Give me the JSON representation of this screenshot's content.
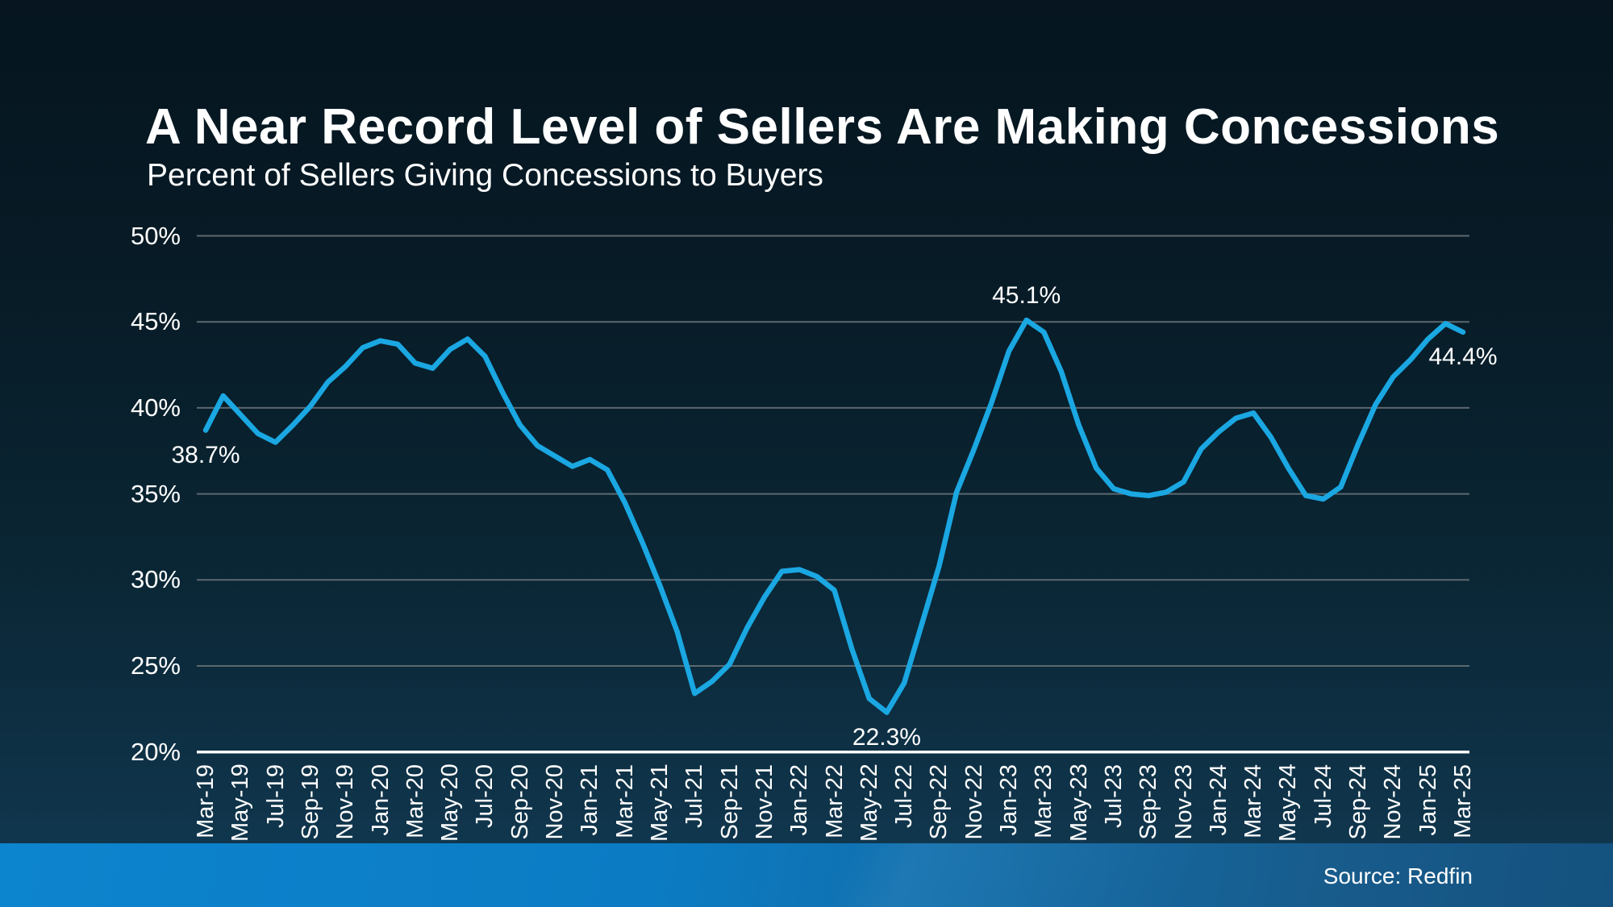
{
  "title": "A Near Record Level of Sellers Are Making Concessions",
  "subtitle": "Percent of Sellers Giving Concessions to Buyers",
  "source": "Source: Redfin",
  "colors": {
    "background_top": "#06151f",
    "background_bottom": "#123c55",
    "line": "#1aa7e2",
    "gridline": "#5c686f",
    "axis_line": "#ffffff",
    "text": "#ffffff",
    "footer_left": "#0d84ce",
    "footer_right": "#14517e"
  },
  "chart_data": {
    "type": "line",
    "unit": "%",
    "title": "A Near Record Level of Sellers Are Making Concessions",
    "subtitle": "Percent of Sellers Giving Concessions to Buyers",
    "ylim": [
      20,
      50
    ],
    "grid": "horizontal",
    "legend": "none",
    "yticks": [
      {
        "value": 50,
        "label": "50%"
      },
      {
        "value": 45,
        "label": "45%"
      },
      {
        "value": 40,
        "label": "40%"
      },
      {
        "value": 35,
        "label": "35%"
      },
      {
        "value": 30,
        "label": "30%"
      },
      {
        "value": 25,
        "label": "25%"
      },
      {
        "value": 20,
        "label": "20%"
      }
    ],
    "x_tick_labels": [
      "Mar-19",
      "May-19",
      "Jul-19",
      "Sep-19",
      "Nov-19",
      "Jan-20",
      "Mar-20",
      "May-20",
      "Jul-20",
      "Sep-20",
      "Nov-20",
      "Jan-21",
      "Mar-21",
      "May-21",
      "Jul-21",
      "Sep-21",
      "Nov-21",
      "Jan-22",
      "Mar-22",
      "May-22",
      "Jul-22",
      "Sep-22",
      "Nov-22",
      "Jan-23",
      "Mar-23",
      "May-23",
      "Jul-23",
      "Sep-23",
      "Nov-23",
      "Jan-24",
      "Mar-24",
      "May-24",
      "Jul-24",
      "Sep-24",
      "Nov-24",
      "Jan-25",
      "Mar-25"
    ],
    "months": [
      "Mar-19",
      "Apr-19",
      "May-19",
      "Jun-19",
      "Jul-19",
      "Aug-19",
      "Sep-19",
      "Oct-19",
      "Nov-19",
      "Dec-19",
      "Jan-20",
      "Feb-20",
      "Mar-20",
      "Apr-20",
      "May-20",
      "Jun-20",
      "Jul-20",
      "Aug-20",
      "Sep-20",
      "Oct-20",
      "Nov-20",
      "Dec-20",
      "Jan-21",
      "Feb-21",
      "Mar-21",
      "Apr-21",
      "May-21",
      "Jun-21",
      "Jul-21",
      "Aug-21",
      "Sep-21",
      "Oct-21",
      "Nov-21",
      "Dec-21",
      "Jan-22",
      "Feb-22",
      "Mar-22",
      "Apr-22",
      "May-22",
      "Jun-22",
      "Jul-22",
      "Aug-22",
      "Sep-22",
      "Oct-22",
      "Nov-22",
      "Dec-22",
      "Jan-23",
      "Feb-23",
      "Mar-23",
      "Apr-23",
      "May-23",
      "Jun-23",
      "Jul-23",
      "Aug-23",
      "Sep-23",
      "Oct-23",
      "Nov-23",
      "Dec-23",
      "Jan-24",
      "Feb-24",
      "Mar-24",
      "Apr-24",
      "May-24",
      "Jun-24",
      "Jul-24",
      "Aug-24",
      "Sep-24",
      "Oct-24",
      "Nov-24",
      "Dec-24",
      "Jan-25",
      "Feb-25",
      "Mar-25"
    ],
    "values": [
      38.7,
      40.7,
      39.6,
      38.5,
      38.0,
      39.0,
      40.1,
      41.5,
      42.4,
      43.5,
      43.9,
      43.7,
      42.6,
      42.3,
      43.4,
      44.0,
      43.0,
      40.9,
      39.0,
      37.8,
      37.2,
      36.6,
      37.0,
      36.4,
      34.5,
      32.2,
      29.7,
      27.0,
      23.4,
      24.1,
      25.1,
      27.2,
      29.0,
      30.5,
      30.6,
      30.2,
      29.4,
      26.0,
      23.1,
      22.3,
      24.0,
      27.4,
      30.8,
      35.1,
      37.6,
      40.3,
      43.3,
      45.1,
      44.4,
      42.1,
      39.0,
      36.5,
      35.3,
      35.0,
      34.9,
      35.1,
      35.7,
      37.6,
      38.6,
      39.4,
      39.7,
      38.3,
      36.5,
      34.9,
      34.7,
      35.4,
      37.9,
      40.2,
      41.8,
      42.8,
      44.0,
      44.9,
      44.4
    ],
    "annotations": [
      {
        "month": "Mar-19",
        "value": 38.7,
        "label": "38.7%",
        "placement": "below"
      },
      {
        "month": "Jun-22",
        "value": 22.3,
        "label": "22.3%",
        "placement": "below"
      },
      {
        "month": "Feb-23",
        "value": 45.1,
        "label": "45.1%",
        "placement": "above"
      },
      {
        "month": "Mar-25",
        "value": 44.4,
        "label": "44.4%",
        "placement": "below"
      }
    ]
  }
}
